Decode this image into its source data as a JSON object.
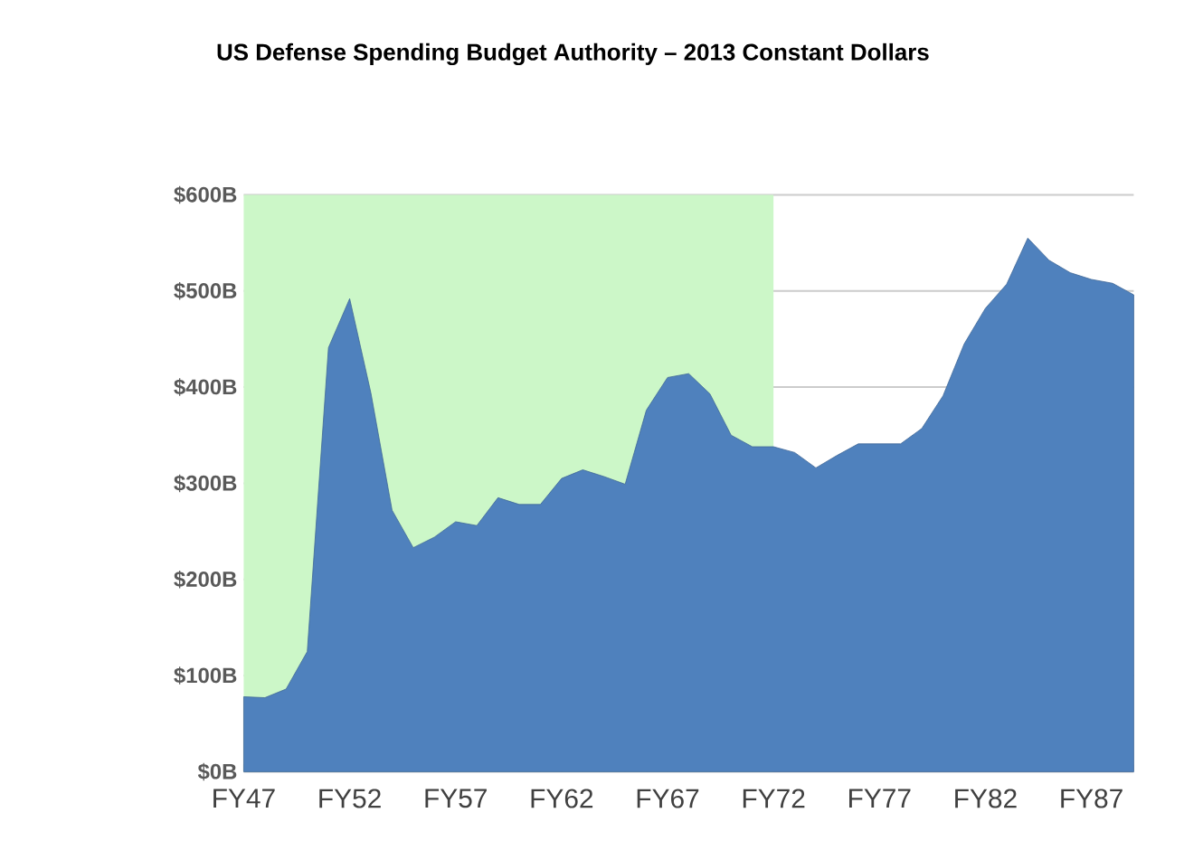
{
  "chart_data": {
    "type": "area",
    "title": "US Defense Spending Budget Authority – 2013 Constant Dollars",
    "categories": [
      "FY47",
      null,
      null,
      null,
      null,
      "FY52",
      null,
      null,
      null,
      null,
      "FY57",
      null,
      null,
      null,
      null,
      "FY62",
      null,
      null,
      null,
      null,
      "FY67",
      null,
      null,
      null,
      null,
      "FY72",
      null,
      null,
      null,
      null,
      "FY77",
      null,
      null,
      null,
      null,
      "FY82",
      null,
      null,
      null,
      null,
      "FY87",
      null,
      null
    ],
    "series": [
      {
        "color": "#4f81bd",
        "values": [
          78,
          77,
          86,
          125,
          441,
          492,
          394,
          272,
          233,
          244,
          260,
          256,
          285,
          278,
          278,
          305,
          314,
          307,
          299,
          376,
          410,
          414,
          393,
          350,
          338,
          338,
          332,
          316,
          329,
          341,
          341,
          341,
          357,
          391,
          445,
          482,
          507,
          555,
          532,
          519,
          512,
          508,
          496
        ]
      }
    ],
    "ylim": [
      0,
      600
    ],
    "yticks": [
      {
        "value": 0,
        "label": "$0B"
      },
      {
        "value": 100,
        "label": "$100B"
      },
      {
        "value": 200,
        "label": "$200B"
      },
      {
        "value": 300,
        "label": "$300B"
      },
      {
        "value": 400,
        "label": "$400B"
      },
      {
        "value": 500,
        "label": "$500B"
      },
      {
        "value": 600,
        "label": "$600B"
      }
    ],
    "bands": [
      {
        "axis": "x",
        "from": "FY47",
        "to": "FY72",
        "color": "#ccf7c8"
      }
    ],
    "grid": "y"
  }
}
